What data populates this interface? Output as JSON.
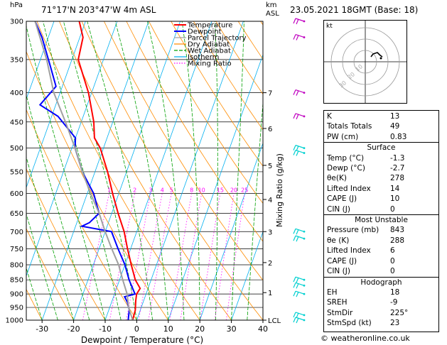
{
  "header": {
    "location": "71°17'N  203°47'W  4m  ASL",
    "datetime": "23.05.2021  18GMT  (Base: 18)",
    "hpa_unit": "hPa",
    "km_unit": "km",
    "asl_unit": "ASL"
  },
  "footer": {
    "copyright": "© weatheronline.co.uk"
  },
  "colors": {
    "temperature": "#ff0000",
    "dewpoint": "#0000ff",
    "parcel": "#a0a0a0",
    "dry_adiabat": "#ff8c00",
    "wet_adiabat": "#00a000",
    "isotherm": "#00b0f0",
    "mixing_ratio": "#ff00ff",
    "wind": "#00d0d0"
  },
  "chart_data": {
    "type": "line",
    "xlabel": "Dewpoint / Temperature (°C)",
    "ylabel_right": "Mixing Ratio (g/kg)",
    "xlim": [
      -35,
      40
    ],
    "ylim": [
      1000,
      300
    ],
    "x_ticks": [
      "-30",
      "-20",
      "-10",
      "0",
      "10",
      "20",
      "30",
      "40"
    ],
    "x_tick_values": [
      -30,
      -20,
      -10,
      0,
      10,
      20,
      30,
      40
    ],
    "pressure_ticks": [
      "300",
      "350",
      "400",
      "450",
      "500",
      "550",
      "600",
      "650",
      "700",
      "750",
      "800",
      "850",
      "900",
      "950",
      "1000"
    ],
    "pressure_values": [
      300,
      350,
      400,
      450,
      500,
      550,
      600,
      650,
      700,
      750,
      800,
      850,
      900,
      950,
      1000
    ],
    "km_ticks": [
      {
        "label": "7",
        "p": 400
      },
      {
        "label": "6",
        "p": 462
      },
      {
        "label": "5",
        "p": 536
      },
      {
        "label": "4",
        "p": 615
      },
      {
        "label": "3",
        "p": 700
      },
      {
        "label": "2",
        "p": 793
      },
      {
        "label": "1",
        "p": 895
      },
      {
        "label": "LCL",
        "p": 1000
      }
    ],
    "mixing_ratio_labels": [
      "1",
      "2",
      "3",
      "4",
      "5",
      "8",
      "10",
      "15",
      "20",
      "25"
    ],
    "mixing_ratio_values": [
      1,
      2,
      3,
      4,
      5,
      8,
      10,
      15,
      20,
      25
    ],
    "legend": [
      "Temperature",
      "Dewpoint",
      "Parcel Trajectory",
      "Dry Adiabat",
      "Wet Adiabat",
      "Isotherm",
      "Mixing Ratio"
    ],
    "series": [
      {
        "name": "Temperature",
        "points": [
          [
            1000,
            -1.3
          ],
          [
            960,
            -1.6
          ],
          [
            925,
            -2.5
          ],
          [
            900,
            -3.0
          ],
          [
            880,
            -2.5
          ],
          [
            850,
            -5
          ],
          [
            800,
            -8
          ],
          [
            750,
            -11
          ],
          [
            700,
            -14
          ],
          [
            650,
            -18
          ],
          [
            600,
            -22
          ],
          [
            550,
            -26
          ],
          [
            500,
            -31
          ],
          [
            480,
            -34
          ],
          [
            450,
            -36
          ],
          [
            400,
            -41
          ],
          [
            350,
            -48
          ],
          [
            320,
            -49
          ],
          [
            300,
            -52
          ]
        ]
      },
      {
        "name": "Dewpoint",
        "points": [
          [
            1000,
            -2.7
          ],
          [
            960,
            -3.5
          ],
          [
            930,
            -5
          ],
          [
            910,
            -6.5
          ],
          [
            900,
            -3.5
          ],
          [
            850,
            -7
          ],
          [
            800,
            -10
          ],
          [
            750,
            -14
          ],
          [
            700,
            -18
          ],
          [
            685,
            -28
          ],
          [
            675,
            -26
          ],
          [
            650,
            -24
          ],
          [
            600,
            -28
          ],
          [
            550,
            -34
          ],
          [
            500,
            -39
          ],
          [
            480,
            -40
          ],
          [
            440,
            -48
          ],
          [
            420,
            -55
          ],
          [
            390,
            -52
          ],
          [
            360,
            -56
          ],
          [
            320,
            -62
          ],
          [
            300,
            -66
          ]
        ]
      },
      {
        "name": "Parcel Trajectory",
        "points": [
          [
            1000,
            -1.3
          ],
          [
            950,
            -4
          ],
          [
            900,
            -6
          ],
          [
            850,
            -9
          ],
          [
            800,
            -12
          ],
          [
            750,
            -16
          ],
          [
            700,
            -20
          ],
          [
            650,
            -24
          ],
          [
            600,
            -29
          ],
          [
            550,
            -34
          ],
          [
            500,
            -39
          ],
          [
            450,
            -45
          ],
          [
            400,
            -52
          ],
          [
            350,
            -58
          ],
          [
            300,
            -66
          ]
        ]
      }
    ]
  },
  "hodograph": {
    "label": "kt",
    "ring_labels": [
      "10",
      "20",
      "30"
    ]
  },
  "indices": {
    "top": [
      {
        "label": "K",
        "value": "13"
      },
      {
        "label": "Totals Totals",
        "value": "49"
      },
      {
        "label": "PW (cm)",
        "value": "0.83"
      }
    ],
    "surface": {
      "title": "Surface",
      "rows": [
        {
          "label": "Temp (°C)",
          "value": "-1.3"
        },
        {
          "label": "Dewp (°C)",
          "value": "-2.7"
        },
        {
          "label": "θe(K)",
          "value": "278"
        },
        {
          "label": "Lifted Index",
          "value": "14"
        },
        {
          "label": "CAPE (J)",
          "value": "10"
        },
        {
          "label": "CIN (J)",
          "value": "0"
        }
      ]
    },
    "most_unstable": {
      "title": "Most Unstable",
      "rows": [
        {
          "label": "Pressure (mb)",
          "value": "843"
        },
        {
          "label": "θe (K)",
          "value": "288"
        },
        {
          "label": "Lifted Index",
          "value": "6"
        },
        {
          "label": "CAPE (J)",
          "value": "0"
        },
        {
          "label": "CIN (J)",
          "value": "0"
        }
      ]
    },
    "hodograph": {
      "title": "Hodograph",
      "rows": [
        {
          "label": "EH",
          "value": "18"
        },
        {
          "label": "SREH",
          "value": "-9"
        },
        {
          "label": "StmDir",
          "value": "225°"
        },
        {
          "label": "StmSpd (kt)",
          "value": "23"
        }
      ]
    }
  }
}
